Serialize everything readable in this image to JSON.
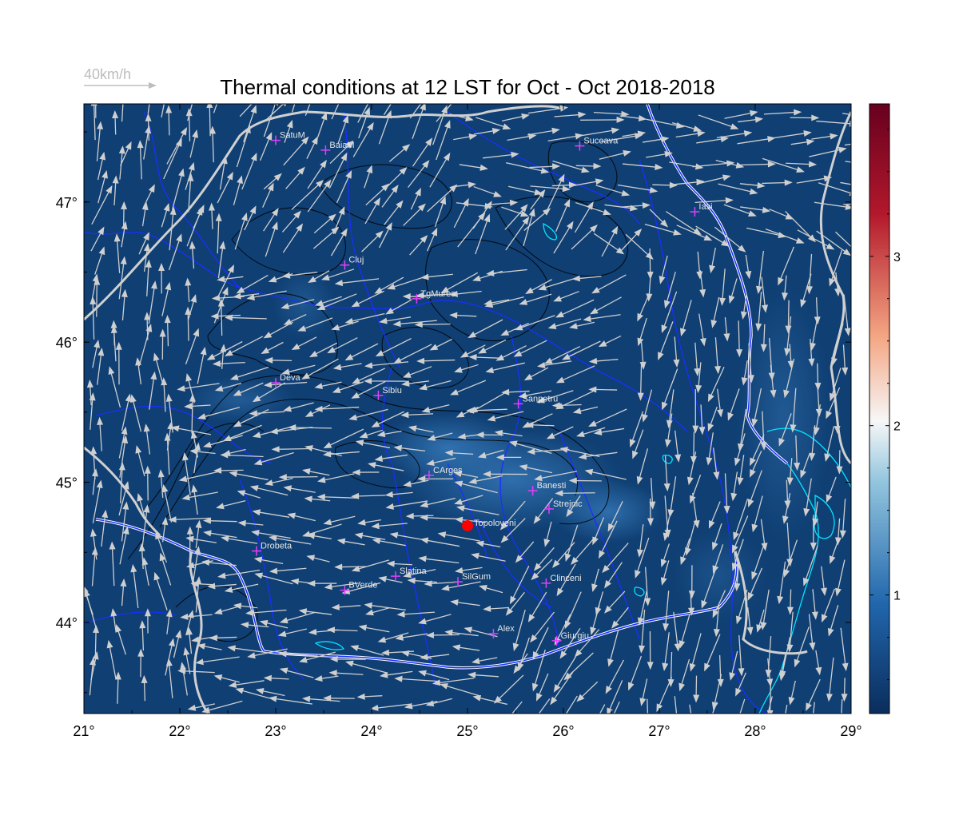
{
  "title": "Thermal conditions at 12 LST for Oct - Oct  2018-2018",
  "wind_legend": {
    "label": "40km/h",
    "color": "#bdbdbd"
  },
  "axes": {
    "lon_ticks": [
      "21°",
      "22°",
      "23°",
      "24°",
      "25°",
      "26°",
      "27°",
      "28°",
      "29°"
    ],
    "lat_ticks": [
      "44°",
      "45°",
      "46°",
      "47°"
    ],
    "lon_range": [
      21,
      29
    ],
    "lat_range": [
      43.35,
      47.7
    ]
  },
  "colorbar": {
    "ticks": [
      "1",
      "2",
      "3"
    ],
    "tick_values": [
      1,
      2,
      3
    ],
    "range": [
      0.3,
      3.9
    ],
    "colors": [
      "#0a2d5c",
      "#2166ac",
      "#92c5de",
      "#f7f7f7",
      "#f4a582",
      "#b2182b",
      "#67001f"
    ]
  },
  "colors": {
    "background": "#0f3f73",
    "river": "#1a2fff",
    "border": "#d0d0d0",
    "lake": "#00e5ff",
    "contour": "#000000",
    "station_marker": "#e040fb",
    "highlight_marker": "#ff0000",
    "wind_arrow": "#cfcfcf"
  },
  "highlight_station": {
    "name": "Topoloveni",
    "lon": 25.0,
    "lat": 44.69
  },
  "stations": [
    {
      "name": "SatuM",
      "lon": 23.0,
      "lat": 47.44
    },
    {
      "name": "BaiaM",
      "lon": 23.52,
      "lat": 47.37
    },
    {
      "name": "Suceava",
      "lon": 26.17,
      "lat": 47.4
    },
    {
      "name": "Iasi",
      "lon": 27.37,
      "lat": 46.93
    },
    {
      "name": "Cluj",
      "lon": 23.72,
      "lat": 46.55
    },
    {
      "name": "TgMures",
      "lon": 24.47,
      "lat": 46.31
    },
    {
      "name": "Deva",
      "lon": 23.0,
      "lat": 45.71
    },
    {
      "name": "Sibiu",
      "lon": 24.07,
      "lat": 45.62
    },
    {
      "name": "Sanpetru",
      "lon": 25.53,
      "lat": 45.56
    },
    {
      "name": "CArges",
      "lon": 24.6,
      "lat": 45.05
    },
    {
      "name": "Banesti",
      "lon": 25.68,
      "lat": 44.94
    },
    {
      "name": "Strejnic",
      "lon": 25.85,
      "lat": 44.81
    },
    {
      "name": "Drobeta",
      "lon": 22.8,
      "lat": 44.51
    },
    {
      "name": "Slatina",
      "lon": 24.25,
      "lat": 44.33
    },
    {
      "name": "SilGum",
      "lon": 24.9,
      "lat": 44.29
    },
    {
      "name": "Clinceni",
      "lon": 25.82,
      "lat": 44.28
    },
    {
      "name": "BVerde",
      "lon": 23.72,
      "lat": 44.23
    },
    {
      "name": "Alex",
      "lon": 25.27,
      "lat": 43.92
    },
    {
      "name": "Giurgiu",
      "lon": 25.93,
      "lat": 43.87
    }
  ]
}
